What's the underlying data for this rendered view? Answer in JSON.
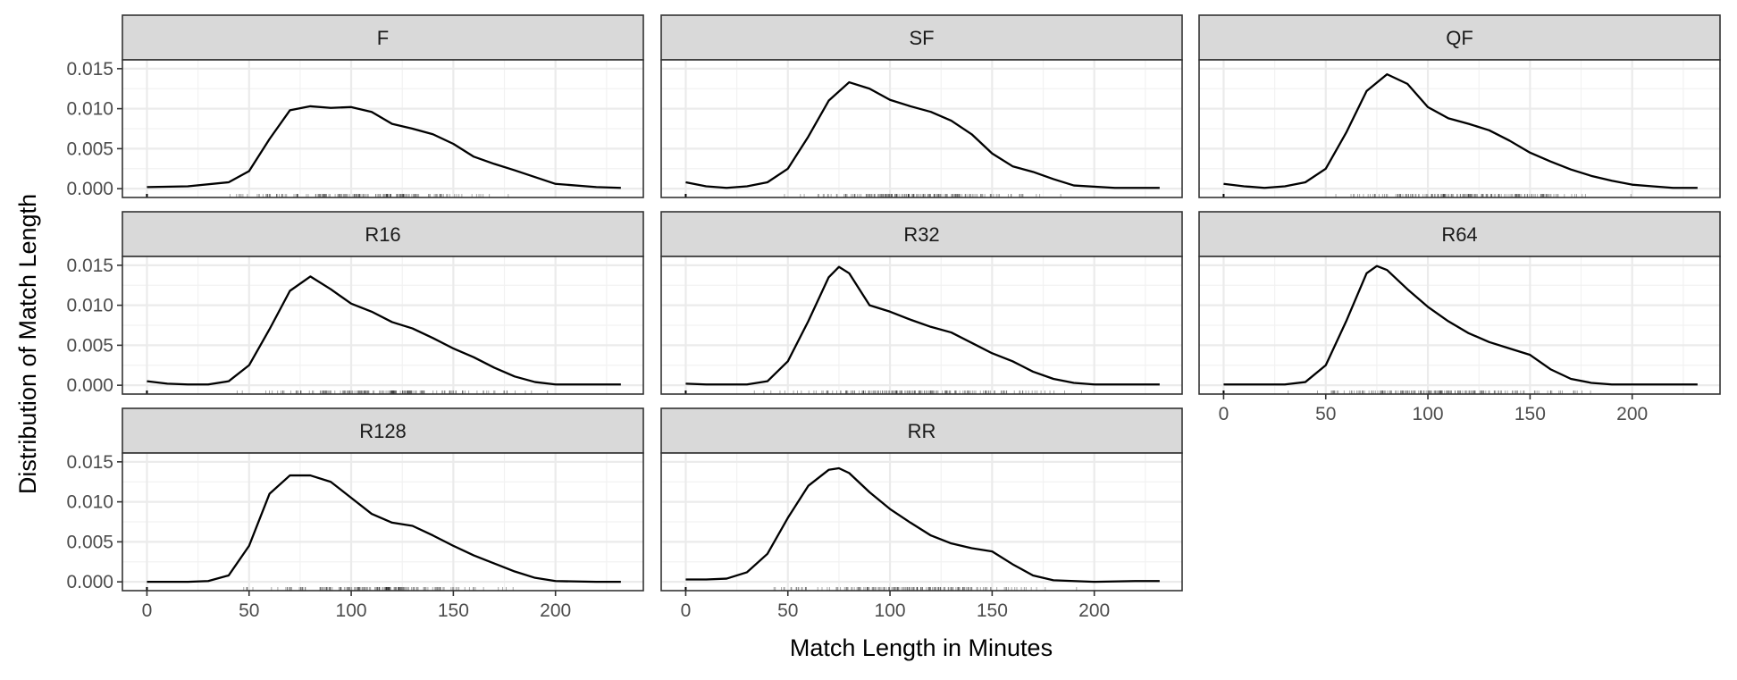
{
  "chart_data": {
    "type": "area",
    "xlabel": "Match Length in Minutes",
    "ylabel": "Distribution of Match Length",
    "xlim": [
      -12,
      243
    ],
    "ylim": [
      -0.0011,
      0.0161
    ],
    "x_ticks": [
      0,
      50,
      100,
      150,
      200
    ],
    "x_tick_labels": [
      "0",
      "50",
      "100",
      "150",
      "200"
    ],
    "y_ticks": [
      0,
      0.005,
      0.01,
      0.015
    ],
    "y_tick_labels": [
      "0.000",
      "0.005",
      "0.010",
      "0.015"
    ],
    "grid": true,
    "legend": "none",
    "facet_columns": 3,
    "panels": [
      {
        "name": "F",
        "x": [
          0,
          20,
          40,
          50,
          60,
          70,
          80,
          90,
          100,
          110,
          120,
          130,
          140,
          150,
          160,
          170,
          180,
          200,
          220,
          232
        ],
        "y": [
          0.0002,
          0.0003,
          0.0008,
          0.0022,
          0.0062,
          0.0098,
          0.0103,
          0.0101,
          0.0102,
          0.0096,
          0.0081,
          0.0075,
          0.0068,
          0.0056,
          0.004,
          0.0031,
          0.0023,
          0.0006,
          0.0002,
          0.0001
        ]
      },
      {
        "name": "SF",
        "x": [
          0,
          10,
          20,
          30,
          40,
          50,
          60,
          70,
          80,
          90,
          100,
          110,
          120,
          130,
          140,
          150,
          160,
          170,
          180,
          190,
          210,
          232
        ],
        "y": [
          0.0008,
          0.0003,
          0.0001,
          0.0003,
          0.0008,
          0.0025,
          0.0065,
          0.011,
          0.0133,
          0.0125,
          0.0111,
          0.0103,
          0.0096,
          0.0085,
          0.0068,
          0.0044,
          0.0028,
          0.0021,
          0.0012,
          0.0004,
          0.0001,
          0.0001
        ]
      },
      {
        "name": "QF",
        "x": [
          0,
          10,
          20,
          30,
          40,
          50,
          60,
          70,
          80,
          90,
          100,
          110,
          120,
          130,
          140,
          150,
          160,
          170,
          180,
          190,
          200,
          210,
          220,
          232
        ],
        "y": [
          0.0006,
          0.0003,
          0.0001,
          0.0003,
          0.0008,
          0.0025,
          0.007,
          0.0122,
          0.0143,
          0.0131,
          0.0102,
          0.0088,
          0.0081,
          0.0073,
          0.006,
          0.0045,
          0.0034,
          0.0024,
          0.0016,
          0.001,
          0.0005,
          0.0003,
          0.0001,
          0.0001
        ]
      },
      {
        "name": "R16",
        "x": [
          0,
          10,
          20,
          30,
          40,
          50,
          60,
          70,
          80,
          90,
          100,
          110,
          120,
          130,
          140,
          150,
          160,
          170,
          180,
          190,
          200,
          220,
          232
        ],
        "y": [
          0.0005,
          0.0002,
          0.0001,
          0.0001,
          0.0005,
          0.0025,
          0.007,
          0.0118,
          0.0136,
          0.012,
          0.0102,
          0.0092,
          0.0079,
          0.0071,
          0.0059,
          0.0046,
          0.0035,
          0.0022,
          0.0011,
          0.0004,
          0.0001,
          0.0001,
          0.0001
        ]
      },
      {
        "name": "R32",
        "x": [
          0,
          10,
          20,
          30,
          40,
          50,
          60,
          70,
          75,
          80,
          90,
          100,
          110,
          120,
          130,
          140,
          150,
          160,
          170,
          180,
          190,
          200,
          220,
          232
        ],
        "y": [
          0.0002,
          0.0001,
          0.0001,
          0.0001,
          0.0005,
          0.003,
          0.008,
          0.0135,
          0.0148,
          0.014,
          0.01,
          0.0092,
          0.0082,
          0.0073,
          0.0066,
          0.0053,
          0.004,
          0.003,
          0.0017,
          0.0008,
          0.0003,
          0.0001,
          0.0001,
          0.0001
        ]
      },
      {
        "name": "R64",
        "x": [
          0,
          10,
          20,
          30,
          40,
          50,
          60,
          70,
          75,
          80,
          90,
          100,
          110,
          120,
          130,
          140,
          150,
          160,
          170,
          180,
          190,
          200,
          220,
          232
        ],
        "y": [
          0.0001,
          0.0001,
          0.0001,
          0.0001,
          0.0004,
          0.0025,
          0.008,
          0.014,
          0.0149,
          0.0144,
          0.012,
          0.0098,
          0.008,
          0.0065,
          0.0054,
          0.0046,
          0.0038,
          0.002,
          0.0008,
          0.0003,
          0.0001,
          0.0001,
          0.0001,
          0.0001
        ]
      },
      {
        "name": "R128",
        "x": [
          0,
          20,
          30,
          40,
          50,
          60,
          70,
          80,
          90,
          100,
          110,
          120,
          130,
          140,
          150,
          160,
          170,
          180,
          190,
          200,
          220,
          232
        ],
        "y": [
          0.0,
          0.0,
          0.0001,
          0.0008,
          0.0045,
          0.011,
          0.0133,
          0.0133,
          0.0125,
          0.0105,
          0.0085,
          0.0074,
          0.007,
          0.0058,
          0.0045,
          0.0033,
          0.0023,
          0.0013,
          0.0005,
          0.0001,
          0.0,
          0.0
        ]
      },
      {
        "name": "RR",
        "x": [
          0,
          10,
          20,
          30,
          40,
          50,
          60,
          70,
          75,
          80,
          90,
          100,
          110,
          120,
          130,
          140,
          150,
          160,
          170,
          180,
          190,
          200,
          220,
          232
        ],
        "y": [
          0.0003,
          0.0003,
          0.0004,
          0.0012,
          0.0035,
          0.008,
          0.012,
          0.014,
          0.0142,
          0.0136,
          0.0112,
          0.0091,
          0.0074,
          0.0058,
          0.0048,
          0.0042,
          0.0038,
          0.0022,
          0.0008,
          0.0002,
          0.0001,
          0.0,
          0.0001,
          0.0001
        ]
      }
    ],
    "rug_range": [
      [
        20,
        195
      ],
      [
        25,
        200
      ],
      [
        30,
        210
      ],
      [
        25,
        205
      ],
      [
        20,
        210
      ],
      [
        15,
        200
      ],
      [
        30,
        195
      ],
      [
        15,
        205
      ]
    ]
  }
}
